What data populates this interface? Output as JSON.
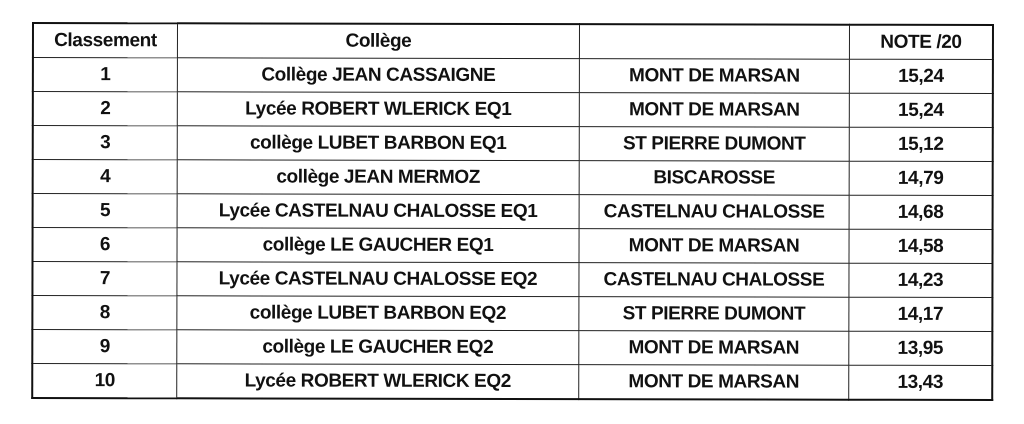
{
  "table": {
    "headers": [
      "Classement",
      "Collège",
      "",
      "NOTE /20"
    ],
    "rows": [
      [
        "1",
        "Collège JEAN CASSAIGNE",
        "MONT DE MARSAN",
        "15,24"
      ],
      [
        "2",
        "Lycée ROBERT WLERICK EQ1",
        "MONT DE MARSAN",
        "15,24"
      ],
      [
        "3",
        "collège LUBET BARBON EQ1",
        "ST PIERRE DUMONT",
        "15,12"
      ],
      [
        "4",
        "collège JEAN MERMOZ",
        "BISCAROSSE",
        "14,79"
      ],
      [
        "5",
        "Lycée CASTELNAU CHALOSSE EQ1",
        "CASTELNAU CHALOSSE",
        "14,68"
      ],
      [
        "6",
        "collège LE GAUCHER EQ1",
        "MONT DE MARSAN",
        "14,58"
      ],
      [
        "7",
        "Lycée CASTELNAU CHALOSSE EQ2",
        "CASTELNAU CHALOSSE",
        "14,23"
      ],
      [
        "8",
        "collège LUBET BARBON EQ2",
        "ST PIERRE DUMONT",
        "14,17"
      ],
      [
        "9",
        "collège LE GAUCHER EQ2",
        "MONT DE MARSAN",
        "13,95"
      ],
      [
        "10",
        "Lycée ROBERT WLERICK EQ2",
        "MONT DE MARSAN",
        "13,43"
      ]
    ]
  }
}
